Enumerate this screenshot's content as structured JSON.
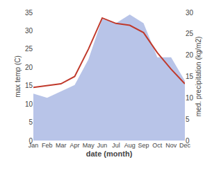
{
  "chart_data": {
    "type": "line",
    "xlabel": "date (month)",
    "ylabel": "max temp (C)",
    "y2label": "med. precipitation (kg/m2)",
    "categories": [
      "Jan",
      "Feb",
      "Mar",
      "Apr",
      "May",
      "Jun",
      "Jul",
      "Aug",
      "Sep",
      "Oct",
      "Nov",
      "Dec"
    ],
    "series": [
      {
        "type": "area",
        "axis": "y2",
        "color": "#b8c4e8",
        "values": [
          11.0,
          10.0,
          11.5,
          13.0,
          19.0,
          28.5,
          27.5,
          29.5,
          27.5,
          19.5,
          19.5,
          14.0
        ]
      },
      {
        "type": "line",
        "color": "#c0392b",
        "values": [
          14.5,
          15.0,
          15.5,
          17.5,
          25.0,
          33.5,
          32.0,
          31.5,
          29.5,
          24.0,
          19.5,
          15.5
        ]
      }
    ],
    "ylim": [
      0,
      35
    ],
    "yticks": [
      0,
      5,
      10,
      15,
      20,
      25,
      30,
      35
    ],
    "y2lim": [
      0,
      30
    ],
    "y2ticks": [
      0,
      5,
      10,
      15,
      20,
      25,
      30
    ],
    "grid": false
  }
}
